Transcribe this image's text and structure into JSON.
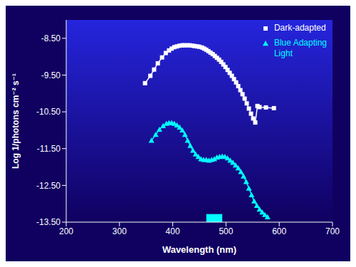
{
  "chart_data": {
    "type": "line",
    "xlabel": "Wavelength (nm)",
    "ylabel": "Log 1/photons cm⁻² s⁻¹",
    "xlim": [
      200,
      700
    ],
    "ylim": [
      -13.5,
      -8.0
    ],
    "xticks": [
      200,
      300,
      400,
      500,
      600,
      700
    ],
    "yticks": [
      {
        "value": -13.5,
        "label": "-13.50"
      },
      {
        "value": -12.5,
        "label": "-12.50"
      },
      {
        "value": -11.5,
        "label": "-11.50"
      },
      {
        "value": -10.5,
        "label": "-10.50"
      },
      {
        "value": -9.5,
        "label": "-9.50"
      },
      {
        "value": -8.5,
        "label": "-8.50"
      }
    ],
    "grid": false,
    "legend": "upper right",
    "series": [
      {
        "name": "Dark-adapted",
        "color": "#ffffff",
        "marker": "square",
        "x": [
          348,
          358,
          365,
          372,
          380,
          387,
          393,
          398,
          403,
          408,
          413,
          418,
          422,
          427,
          432,
          437,
          441,
          446,
          450,
          455,
          459,
          463,
          467,
          471,
          475,
          479,
          483,
          487,
          491,
          495,
          499,
          503,
          507,
          511,
          515,
          519,
          523,
          527,
          531,
          535,
          539,
          543,
          547,
          551,
          555,
          559,
          563,
          575,
          590
        ],
        "values": [
          -9.72,
          -9.52,
          -9.35,
          -9.18,
          -9.02,
          -8.9,
          -8.83,
          -8.78,
          -8.74,
          -8.72,
          -8.7,
          -8.69,
          -8.69,
          -8.69,
          -8.69,
          -8.7,
          -8.71,
          -8.72,
          -8.73,
          -8.75,
          -8.78,
          -8.81,
          -8.85,
          -8.89,
          -8.93,
          -8.98,
          -9.03,
          -9.08,
          -9.14,
          -9.21,
          -9.28,
          -9.36,
          -9.44,
          -9.52,
          -9.61,
          -9.7,
          -9.8,
          -9.91,
          -10.02,
          -10.14,
          -10.27,
          -10.41,
          -10.55,
          -10.68,
          -10.79,
          -10.34,
          -10.37,
          -10.38,
          -10.4
        ]
      },
      {
        "name": "Blue Adapting\nLight",
        "color": "#00ffff",
        "marker": "triangle",
        "x": [
          360,
          368,
          375,
          382,
          388,
          393,
          398,
          403,
          408,
          413,
          418,
          423,
          428,
          433,
          438,
          443,
          448,
          453,
          458,
          463,
          468,
          473,
          478,
          483,
          488,
          493,
          498,
          503,
          508,
          513,
          518,
          523,
          528,
          533,
          538,
          543,
          548,
          553,
          558,
          563,
          568,
          573,
          578
        ],
        "values": [
          -11.28,
          -11.12,
          -10.98,
          -10.88,
          -10.82,
          -10.8,
          -10.8,
          -10.82,
          -10.86,
          -10.92,
          -11.0,
          -11.12,
          -11.28,
          -11.42,
          -11.55,
          -11.65,
          -11.72,
          -11.78,
          -11.8,
          -11.8,
          -11.82,
          -11.8,
          -11.78,
          -11.74,
          -11.72,
          -11.71,
          -11.72,
          -11.76,
          -11.82,
          -11.88,
          -11.95,
          -12.03,
          -12.13,
          -12.25,
          -12.4,
          -12.58,
          -12.76,
          -12.93,
          -13.05,
          -13.15,
          -13.23,
          -13.3,
          -13.36
        ]
      }
    ],
    "band": {
      "x": [
        463,
        493
      ],
      "color": "#00ffff"
    }
  }
}
